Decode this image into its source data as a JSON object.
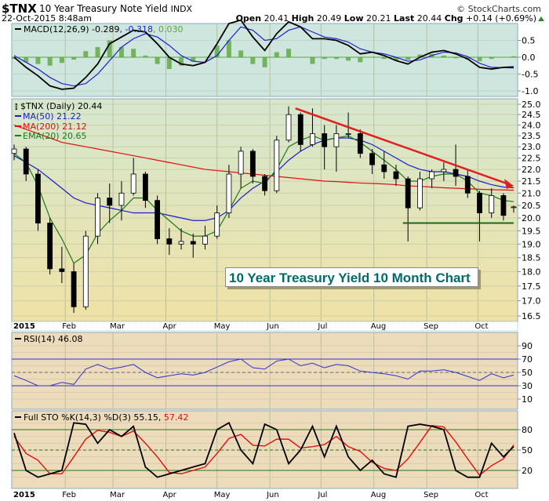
{
  "header": {
    "symbol": "$TNX",
    "name": "10 Year Treasury Note Yield",
    "exchange": "INDX",
    "credit": "© StockCharts.com",
    "datetime": "22-Oct-2015 8:48am",
    "open_label": "Open",
    "open": "20.41",
    "high_label": "High",
    "high": "20.49",
    "low_label": "Low",
    "low": "20.21",
    "last_label": "Last",
    "last": "20.44",
    "chg_label": "Chg",
    "chg": "+0.14 (+0.69%)",
    "chg_direction": "up"
  },
  "annotation": "10 Year Treasury Yield 10 Month Chart",
  "colors": {
    "macd_bg": "#cfe6de",
    "price_bg_top": "#d5e7cf",
    "price_bg_bottom": "#f0e2a6",
    "osc_bg": "#ecdcbc",
    "ma50": "#1c1ccc",
    "ma200": "#e01010",
    "ema20": "#1a7a1a",
    "macd": "#000000",
    "signal": "#2020cc",
    "histogram": "#5aa83c",
    "trendline": "#e02020",
    "support": "#1a6a1a",
    "rsi": "#3030d0",
    "stoK": "#000000",
    "stoD": "#e01010"
  },
  "chart_data": [
    {
      "type": "line",
      "panel": "macd",
      "legend": {
        "label": "MACD(12,26,9)",
        "macd": "-0.289",
        "signal": "-0.318",
        "histogram": "0.030"
      },
      "y_ticks": [
        "0.5",
        "0.0",
        "-0.5",
        "-1.0"
      ],
      "ylim": [
        -1.1,
        1.3
      ],
      "macd": [
        0.0,
        -0.3,
        -0.55,
        -0.85,
        -0.95,
        -0.92,
        -0.6,
        -0.2,
        0.4,
        0.6,
        0.8,
        0.75,
        0.4,
        0.0,
        -0.2,
        -0.25,
        -0.15,
        0.4,
        1.0,
        1.1,
        0.6,
        0.2,
        0.7,
        1.05,
        0.9,
        0.55,
        0.55,
        0.5,
        0.35,
        0.1,
        0.15,
        0.05,
        -0.1,
        -0.2,
        0.0,
        0.15,
        0.2,
        0.1,
        -0.05,
        -0.3,
        -0.35,
        -0.3,
        -0.289
      ],
      "signal": [
        0.05,
        -0.15,
        -0.35,
        -0.6,
        -0.78,
        -0.85,
        -0.78,
        -0.5,
        -0.1,
        0.3,
        0.55,
        0.7,
        0.6,
        0.35,
        0.05,
        -0.12,
        -0.15,
        0.05,
        0.5,
        0.9,
        0.8,
        0.5,
        0.55,
        0.8,
        0.9,
        0.75,
        0.6,
        0.55,
        0.45,
        0.25,
        0.15,
        0.1,
        0.0,
        -0.12,
        -0.08,
        0.05,
        0.15,
        0.13,
        0.02,
        -0.18,
        -0.3,
        -0.31,
        -0.318
      ]
    },
    {
      "type": "candlestick",
      "panel": "price",
      "scale": "log",
      "legend": {
        "title": "$TNX (Daily)",
        "last": "20.44",
        "ma50_label": "MA(50)",
        "ma50": "21.22",
        "ma200_label": "MA(200)",
        "ma200": "21.12",
        "ema20_label": "EMA(20)",
        "ema20": "20.65"
      },
      "ylim": [
        16.5,
        25.0
      ],
      "y_ticks": [
        "25.0",
        "24.5",
        "24.0",
        "23.5",
        "23.0",
        "22.5",
        "22.0",
        "21.5",
        "21.0",
        "20.5",
        "20.0",
        "19.5",
        "19.0",
        "18.5",
        "18.0",
        "17.5",
        "17.0",
        "16.5"
      ],
      "dates": [
        "2015-01-02",
        "2015-01-09",
        "2015-01-16",
        "2015-01-23",
        "2015-01-30",
        "2015-02-06",
        "2015-02-13",
        "2015-02-20",
        "2015-02-27",
        "2015-03-06",
        "2015-03-13",
        "2015-03-20",
        "2015-03-27",
        "2015-04-03",
        "2015-04-10",
        "2015-04-17",
        "2015-04-24",
        "2015-05-01",
        "2015-05-08",
        "2015-05-15",
        "2015-05-22",
        "2015-05-29",
        "2015-06-05",
        "2015-06-12",
        "2015-06-19",
        "2015-06-26",
        "2015-07-03",
        "2015-07-10",
        "2015-07-17",
        "2015-07-24",
        "2015-07-31",
        "2015-08-07",
        "2015-08-14",
        "2015-08-21",
        "2015-08-28",
        "2015-09-04",
        "2015-09-11",
        "2015-09-18",
        "2015-09-25",
        "2015-10-02",
        "2015-10-09",
        "2015-10-16",
        "2015-10-22"
      ],
      "open": [
        22.7,
        22.9,
        21.8,
        19.8,
        18.1,
        18.0,
        16.8,
        19.3,
        20.8,
        20.5,
        21.0,
        21.8,
        20.7,
        19.2,
        19.0,
        19.1,
        19.0,
        19.3,
        20.2,
        21.8,
        22.8,
        21.7,
        21.1,
        23.3,
        24.5,
        23.1,
        23.6,
        23.0,
        23.6,
        23.6,
        22.7,
        22.2,
        21.9,
        21.6,
        20.4,
        21.6,
        21.9,
        22.0,
        21.7,
        21.0,
        20.2,
        20.9,
        20.41
      ],
      "high": [
        23.1,
        23.0,
        22.0,
        20.0,
        18.9,
        18.3,
        19.5,
        21.0,
        21.4,
        21.5,
        22.5,
        21.9,
        20.9,
        19.6,
        19.6,
        19.4,
        19.7,
        20.5,
        22.2,
        23.0,
        22.9,
        21.8,
        23.5,
        24.9,
        24.6,
        24.8,
        24.0,
        24.0,
        24.6,
        23.8,
        22.9,
        22.8,
        22.2,
        21.7,
        21.9,
        22.0,
        22.3,
        23.1,
        22.0,
        21.1,
        21.2,
        21.0,
        20.49
      ],
      "low": [
        22.4,
        21.5,
        19.5,
        17.9,
        17.6,
        16.6,
        16.7,
        19.0,
        19.8,
        19.9,
        20.9,
        20.4,
        19.0,
        18.6,
        18.8,
        18.5,
        18.8,
        19.2,
        20.0,
        21.2,
        21.4,
        20.9,
        21.0,
        23.2,
        22.8,
        23.0,
        22.0,
        21.9,
        23.4,
        22.5,
        21.8,
        21.6,
        21.3,
        19.1,
        20.3,
        21.2,
        21.5,
        21.3,
        20.8,
        19.1,
        20.0,
        19.9,
        20.21
      ],
      "close": [
        22.9,
        21.8,
        19.8,
        18.1,
        18.0,
        16.8,
        19.3,
        20.8,
        20.5,
        21.0,
        21.8,
        20.7,
        19.2,
        19.0,
        19.1,
        19.0,
        19.3,
        20.2,
        21.8,
        22.8,
        21.7,
        21.1,
        23.3,
        24.5,
        23.1,
        23.6,
        23.0,
        23.6,
        23.6,
        22.7,
        22.2,
        21.9,
        21.6,
        20.4,
        21.6,
        21.9,
        22.0,
        21.7,
        21.0,
        20.2,
        20.9,
        20.1,
        20.44
      ],
      "ma50": [
        22.6,
        22.3,
        22.0,
        21.6,
        21.2,
        20.8,
        20.6,
        20.5,
        20.4,
        20.3,
        20.2,
        20.2,
        20.2,
        20.1,
        20.0,
        19.9,
        19.9,
        20.0,
        20.3,
        20.8,
        21.2,
        21.5,
        21.9,
        22.4,
        22.8,
        23.1,
        23.3,
        23.4,
        23.4,
        23.3,
        23.1,
        22.8,
        22.5,
        22.2,
        22.0,
        21.9,
        21.9,
        21.8,
        21.7,
        21.5,
        21.35,
        21.25,
        21.22
      ],
      "ma200": [
        24.0,
        23.8,
        23.6,
        23.4,
        23.2,
        23.1,
        23.0,
        22.9,
        22.8,
        22.7,
        22.6,
        22.5,
        22.4,
        22.3,
        22.2,
        22.1,
        22.0,
        21.95,
        21.9,
        21.85,
        21.8,
        21.75,
        21.7,
        21.65,
        21.6,
        21.55,
        21.5,
        21.48,
        21.45,
        21.42,
        21.4,
        21.38,
        21.35,
        21.3,
        21.28,
        21.25,
        21.22,
        21.2,
        21.18,
        21.16,
        21.14,
        21.13,
        21.12
      ],
      "ema20": [
        22.7,
        22.3,
        21.3,
        20.0,
        19.2,
        18.3,
        18.6,
        19.4,
        19.9,
        20.3,
        20.8,
        20.8,
        20.3,
        19.9,
        19.5,
        19.3,
        19.3,
        19.5,
        20.3,
        21.2,
        21.5,
        21.4,
        22.0,
        23.0,
        23.3,
        23.5,
        23.3,
        23.4,
        23.5,
        23.2,
        22.8,
        22.4,
        22.0,
        21.5,
        21.5,
        21.7,
        21.8,
        21.8,
        21.5,
        21.0,
        20.9,
        20.7,
        20.65
      ],
      "annotations": {
        "trendline": {
          "from": [
            "2015-06-16",
            24.8
          ],
          "to": [
            "2015-10-22",
            21.3
          ]
        },
        "support": {
          "from": [
            "2015-08-18",
            19.8
          ],
          "to": [
            "2015-10-22",
            19.8
          ]
        }
      }
    },
    {
      "type": "line",
      "panel": "rsi",
      "legend": {
        "label": "RSI(14)",
        "value": "46.08"
      },
      "ylim": [
        0,
        100
      ],
      "y_ticks": [
        "90",
        "70",
        "50",
        "30",
        "10"
      ],
      "values": [
        45,
        38,
        30,
        30,
        35,
        32,
        55,
        62,
        55,
        58,
        62,
        50,
        42,
        45,
        48,
        46,
        50,
        58,
        66,
        70,
        57,
        55,
        67,
        70,
        60,
        64,
        57,
        62,
        60,
        52,
        50,
        48,
        45,
        40,
        52,
        52,
        54,
        50,
        44,
        38,
        48,
        42,
        46.08
      ]
    },
    {
      "type": "line",
      "panel": "stochastic",
      "legend": {
        "label": "Full STO %K(14,3) %D(3)",
        "k": "55.15",
        "d": "57.42"
      },
      "ylim": [
        0,
        100
      ],
      "y_ticks": [
        "80",
        "50",
        "20"
      ],
      "k": [
        75,
        20,
        10,
        15,
        20,
        90,
        88,
        60,
        80,
        70,
        85,
        25,
        10,
        15,
        20,
        25,
        30,
        80,
        90,
        50,
        30,
        88,
        80,
        30,
        50,
        85,
        40,
        85,
        40,
        20,
        35,
        15,
        10,
        85,
        88,
        85,
        80,
        20,
        10,
        10,
        60,
        40,
        55.15
      ],
      "d": [
        70,
        45,
        35,
        15,
        15,
        40,
        66,
        79,
        76,
        70,
        78,
        60,
        40,
        17,
        15,
        20,
        25,
        45,
        67,
        73,
        57,
        56,
        66,
        66,
        53,
        55,
        58,
        70,
        55,
        48,
        32,
        23,
        20,
        37,
        61,
        86,
        84,
        62,
        37,
        13,
        27,
        37,
        57.42
      ]
    }
  ],
  "x_axis": {
    "labels": [
      "2015",
      "Feb",
      "Mar",
      "Apr",
      "May",
      "Jun",
      "Jul",
      "Aug",
      "Sep",
      "Oct"
    ],
    "month_starts": [
      "2015-01-02",
      "2015-02-01",
      "2015-03-01",
      "2015-04-01",
      "2015-05-01",
      "2015-06-01",
      "2015-07-01",
      "2015-08-01",
      "2015-09-01",
      "2015-10-01"
    ]
  }
}
